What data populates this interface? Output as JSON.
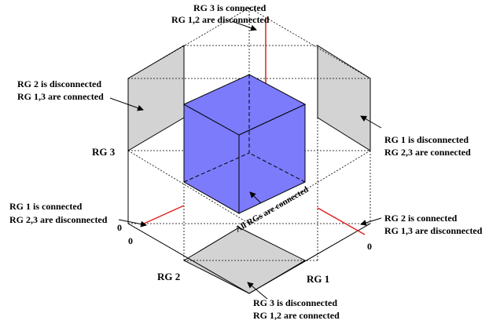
{
  "annotations": {
    "top": {
      "line1": "RG 3 is connected",
      "line2": "RG 1,2 are disconnected"
    },
    "upper_left": {
      "line1": "RG 2 is disconnected",
      "line2": "RG 1,3 are connected"
    },
    "right": {
      "line1": "RG 1 is disconnected",
      "line2": "RG 2,3 are connected"
    },
    "left": {
      "line1": "RG 1 is connected",
      "line2": "RG 2,3 are disconnected"
    },
    "lower_right": {
      "line1": "RG 2 is connected",
      "line2": "RG 1,3 are disconnected"
    },
    "bottom": {
      "line1": "RG 3 is disconnected",
      "line2": "RG 1,2 are connected"
    },
    "center": "All RGs are connected"
  },
  "axes": {
    "rg3": "RG 3",
    "rg2": "RG 2",
    "rg1": "RG 1",
    "origin_left": "0",
    "origin_left_lower": "0",
    "origin_right": "0"
  },
  "colors": {
    "cube_fill": "#7b7bfb",
    "panel_fill": "#d3d3d3",
    "red_line": "#e02020",
    "outline": "#000000"
  }
}
